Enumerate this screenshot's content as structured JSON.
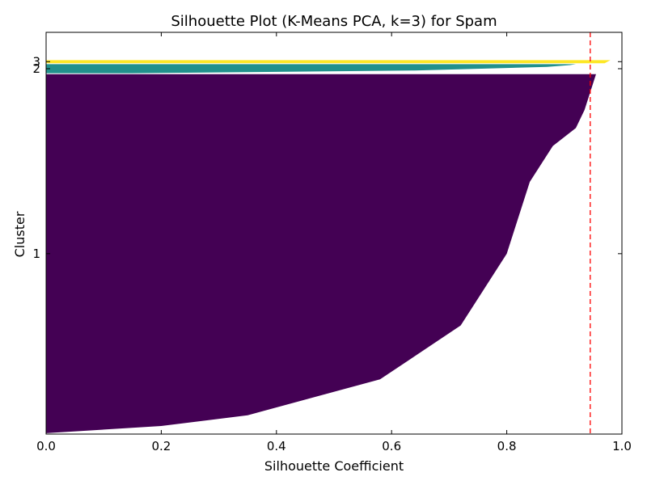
{
  "chart_data": {
    "type": "area",
    "title": "Silhouette Plot (K-Means PCA, k=3) for Spam",
    "xlabel": "Silhouette Coefficient",
    "ylabel": "Cluster",
    "xlim": [
      0.0,
      1.0
    ],
    "ylim": [
      0,
      4601
    ],
    "xticks": [
      "0.0",
      "0.2",
      "0.4",
      "0.6",
      "0.8",
      "1.0"
    ],
    "average_silhouette": 0.945,
    "grid": false,
    "series": [
      {
        "name": "1",
        "color": "#440154",
        "y_range": [
          10,
          4122
        ],
        "silhouette_profile": [
          [
            0.0,
            0.0
          ],
          [
            0.02,
            0.2
          ],
          [
            0.05,
            0.35
          ],
          [
            0.15,
            0.58
          ],
          [
            0.3,
            0.72
          ],
          [
            0.5,
            0.8
          ],
          [
            0.7,
            0.84
          ],
          [
            0.8,
            0.88
          ],
          [
            0.85,
            0.92
          ],
          [
            0.9,
            0.935
          ],
          [
            0.95,
            0.945
          ],
          [
            1.0,
            0.955
          ]
        ]
      },
      {
        "name": "2",
        "color": "#21918c",
        "y_range": [
          4132,
          4237
        ],
        "silhouette_profile": [
          [
            0.0,
            0.15
          ],
          [
            0.3,
            0.64
          ],
          [
            0.7,
            0.87
          ],
          [
            0.9,
            0.91
          ],
          [
            1.0,
            0.92
          ]
        ]
      },
      {
        "name": "3",
        "color": "#fde725",
        "y_range": [
          4247,
          4283
        ],
        "silhouette_profile": [
          [
            0.0,
            0.97
          ],
          [
            1.0,
            0.98
          ]
        ]
      }
    ]
  }
}
